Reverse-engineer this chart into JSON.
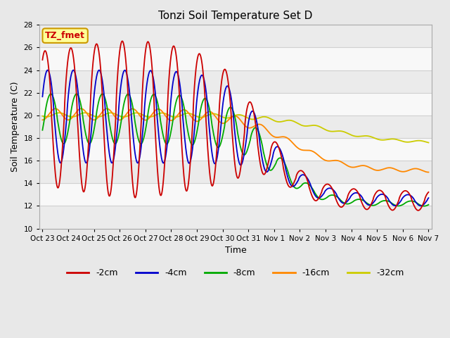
{
  "title": "Tonzi Soil Temperature Set D",
  "xlabel": "Time",
  "ylabel": "Soil Temperature (C)",
  "ylim": [
    10,
    28
  ],
  "background_color": "#e8e8e8",
  "plot_bg_color": "#ffffff",
  "annotation_text": "TZ_fmet",
  "annotation_bg": "#ffff99",
  "annotation_border": "#cc9900",
  "colors": {
    "-2cm": "#cc0000",
    "-4cm": "#0000cc",
    "-8cm": "#00aa00",
    "-16cm": "#ff8800",
    "-32cm": "#cccc00"
  },
  "legend_labels": [
    "-2cm",
    "-4cm",
    "-8cm",
    "-16cm",
    "-32cm"
  ],
  "x_tick_labels": [
    "Oct 23",
    "Oct 24",
    "Oct 25",
    "Oct 26",
    "Oct 27",
    "Oct 28",
    "Oct 29",
    "Oct 30",
    "Oct 31",
    "Nov 1",
    "Nov 2",
    "Nov 3",
    "Nov 4",
    "Nov 5",
    "Nov 6",
    "Nov 7"
  ],
  "x_tick_positions": [
    0,
    24,
    48,
    72,
    96,
    120,
    144,
    168,
    192,
    216,
    240,
    264,
    288,
    312,
    336,
    360
  ]
}
